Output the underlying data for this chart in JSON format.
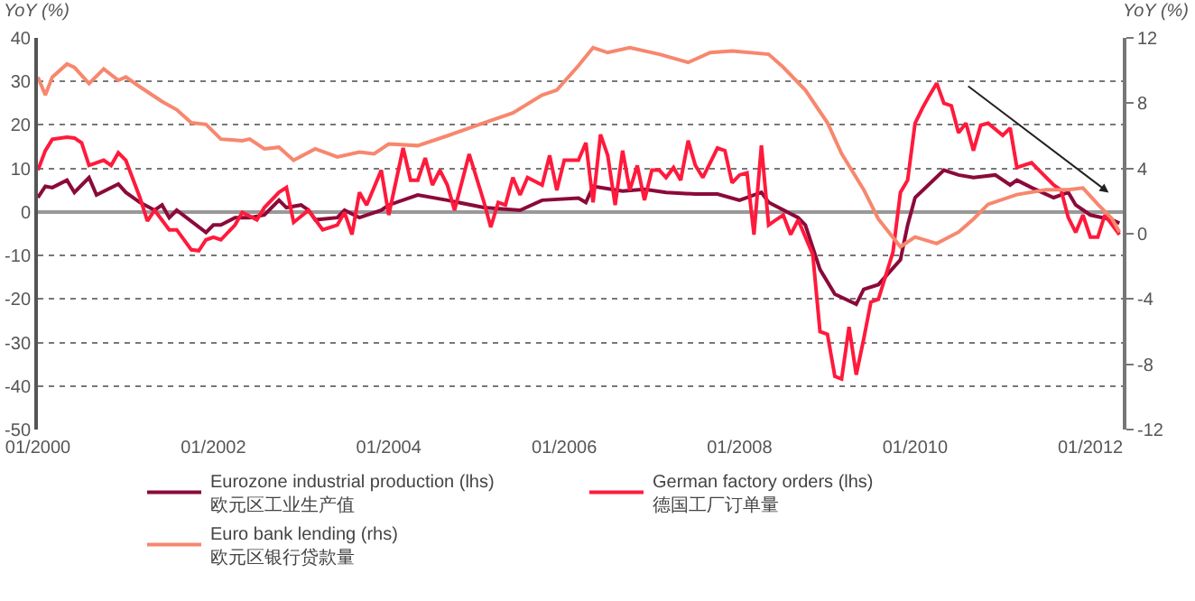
{
  "chart_data": {
    "type": "line",
    "ylabel": "YoY (%)",
    "y2label": "YoY (%)",
    "xlim": [
      "2000-01",
      "2012-05-15"
    ],
    "xticks": [
      {
        "value": "2000-01",
        "label": "01/2000"
      },
      {
        "value": "2002-01",
        "label": "01/2002"
      },
      {
        "value": "2004-01",
        "label": "01/2004"
      },
      {
        "value": "2006-01",
        "label": "01/2006"
      },
      {
        "value": "2008-01",
        "label": "01/2008"
      },
      {
        "value": "2010-01",
        "label": "01/2010"
      },
      {
        "value": "2012-01",
        "label": "01/2012"
      }
    ],
    "ylim": [
      -50,
      40
    ],
    "yticks": [
      -50,
      -40,
      -30,
      -20,
      -10,
      0,
      10,
      20,
      30,
      40
    ],
    "y2lim": [
      -12,
      12
    ],
    "y2ticks": [
      -12,
      -8,
      -4,
      0,
      4,
      8,
      12
    ],
    "grid": "y",
    "legend": "bottom",
    "line_style": "solid",
    "marker": "none",
    "series": [
      {
        "name": "Eurozone industrial production (lhs)\n欧元区工业生产值",
        "color": "#8b0a3a",
        "x": [
          "2000-01",
          "2000-02",
          "2000-03",
          "2000-05",
          "2000-06",
          "2000-08",
          "2000-09",
          "2000-12",
          "2001-01",
          "2001-03",
          "2001-05",
          "2001-06",
          "2001-07",
          "2001-08",
          "2001-12",
          "2002-01",
          "2002-02",
          "2002-04",
          "2002-06",
          "2002-08",
          "2002-10",
          "2002-11",
          "2003-01",
          "2003-02",
          "2003-03",
          "2003-06",
          "2003-07",
          "2003-09",
          "2003-12",
          "2004-01",
          "2004-05",
          "2004-09",
          "2005-02",
          "2005-07",
          "2005-10",
          "2006-03",
          "2006-04",
          "2006-05",
          "2006-09",
          "2006-12",
          "2007-03",
          "2007-07",
          "2007-10",
          "2008-01",
          "2008-04",
          "2008-05",
          "2008-09",
          "2008-10",
          "2008-12",
          "2009-02",
          "2009-05",
          "2009-06",
          "2009-08",
          "2009-11",
          "2009-12",
          "2010-01",
          "2010-05",
          "2010-07",
          "2010-09",
          "2010-12",
          "2011-02",
          "2011-03",
          "2011-05",
          "2011-08",
          "2011-10",
          "2011-11",
          "2012-01",
          "2012-04",
          "2012-05"
        ],
        "values": [
          3.3,
          5.9,
          5.6,
          7.3,
          4.5,
          7.9,
          3.9,
          6.4,
          4.5,
          2.2,
          0.4,
          1.6,
          -1.3,
          0.4,
          -4.7,
          -3.0,
          -3.0,
          -1.3,
          -1.3,
          -0.7,
          2.7,
          1.0,
          1.6,
          0.4,
          -1.8,
          -1.3,
          0.4,
          -1.3,
          0.4,
          1.6,
          3.9,
          2.7,
          1.0,
          0.4,
          2.7,
          3.2,
          2.2,
          5.9,
          4.8,
          5.2,
          4.5,
          4.1,
          4.1,
          2.7,
          4.5,
          2.2,
          -1.3,
          -3.0,
          -13.2,
          -18.9,
          -21.2,
          -17.8,
          -16.7,
          -11.0,
          -3.0,
          3.3,
          9.6,
          8.5,
          7.9,
          8.5,
          6.2,
          7.3,
          5.6,
          3.3,
          4.5,
          1.6,
          -0.7,
          -1.8,
          -2.6
        ]
      },
      {
        "name": "German factory orders (lhs)\n德国工厂订单量",
        "color": "#ff1a3c",
        "x": [
          "2000-01",
          "2000-02",
          "2000-03",
          "2000-05",
          "2000-06",
          "2000-07",
          "2000-08",
          "2000-10",
          "2000-11",
          "2000-12",
          "2001-01",
          "2001-03",
          "2001-04",
          "2001-05",
          "2001-07",
          "2001-08",
          "2001-10",
          "2001-11",
          "2001-12",
          "2002-01",
          "2002-02",
          "2002-04",
          "2002-05",
          "2002-07",
          "2002-08",
          "2002-10",
          "2002-11",
          "2002-12",
          "2003-02",
          "2003-04",
          "2003-06",
          "2003-07",
          "2003-08",
          "2003-09",
          "2003-10",
          "2003-12",
          "2004-01",
          "2004-03",
          "2004-04",
          "2004-05",
          "2004-06",
          "2004-07",
          "2004-08",
          "2004-09",
          "2004-10",
          "2004-12",
          "2005-02",
          "2005-03",
          "2005-04",
          "2005-05",
          "2005-06",
          "2005-07",
          "2005-08",
          "2005-10",
          "2005-11",
          "2005-12",
          "2006-01",
          "2006-03",
          "2006-04",
          "2006-05",
          "2006-06",
          "2006-07",
          "2006-08",
          "2006-09",
          "2006-10",
          "2006-11",
          "2006-12",
          "2007-01",
          "2007-02",
          "2007-03",
          "2007-04",
          "2007-05",
          "2007-06",
          "2007-07",
          "2007-08",
          "2007-10",
          "2007-11",
          "2007-12",
          "2008-01",
          "2008-02",
          "2008-03",
          "2008-04",
          "2008-05",
          "2008-06",
          "2008-07",
          "2008-08",
          "2008-09",
          "2008-11",
          "2008-12",
          "2009-01",
          "2009-02",
          "2009-03",
          "2009-04",
          "2009-05",
          "2009-06",
          "2009-07",
          "2009-08",
          "2009-10",
          "2009-11",
          "2009-12",
          "2010-01",
          "2010-02",
          "2010-03",
          "2010-04",
          "2010-05",
          "2010-06",
          "2010-07",
          "2010-08",
          "2010-09",
          "2010-10",
          "2010-11",
          "2011-01",
          "2011-02",
          "2011-03",
          "2011-05",
          "2011-06",
          "2011-08",
          "2011-09",
          "2011-10",
          "2011-11",
          "2011-12",
          "2012-01",
          "2012-02",
          "2012-03",
          "2012-04",
          "2012-05"
        ],
        "values": [
          9.6,
          14.1,
          16.7,
          17.2,
          17.0,
          15.9,
          10.7,
          11.9,
          10.7,
          13.6,
          11.9,
          3.3,
          -2.1,
          0.4,
          -4.1,
          -4.1,
          -8.7,
          -8.9,
          -6.4,
          -5.8,
          -6.4,
          -3.0,
          -0.1,
          -1.8,
          1.0,
          4.5,
          5.6,
          -2.4,
          0.4,
          -4.1,
          -3.0,
          -0.1,
          -5.2,
          4.5,
          1.6,
          9.6,
          -0.7,
          14.7,
          7.3,
          7.3,
          12.4,
          6.2,
          9.6,
          6.2,
          0.4,
          13.3,
          2.2,
          -3.5,
          2.2,
          1.6,
          7.9,
          3.9,
          7.9,
          6.2,
          13.0,
          5.0,
          11.9,
          11.9,
          15.9,
          2.2,
          17.8,
          13.0,
          1.6,
          14.1,
          5.0,
          10.7,
          2.7,
          9.6,
          9.6,
          7.9,
          10.2,
          7.3,
          16.4,
          10.7,
          7.9,
          14.7,
          14.1,
          6.7,
          8.5,
          9.0,
          -5.2,
          15.3,
          -3.0,
          -1.8,
          -0.7,
          -5.2,
          -1.8,
          -9.8,
          -27.5,
          -28.1,
          -37.8,
          -38.4,
          -26.4,
          -37.4,
          -29.2,
          -20.7,
          -20.1,
          -9.2,
          4.5,
          7.3,
          20.4,
          23.9,
          26.7,
          29.6,
          25.0,
          24.4,
          18.2,
          20.4,
          14.1,
          19.9,
          20.4,
          17.6,
          19.3,
          10.2,
          11.3,
          9.6,
          6.2,
          5.0,
          -1.3,
          -4.7,
          -0.7,
          -5.8,
          -5.8,
          -0.7,
          -3.0,
          -5.2
        ]
      },
      {
        "name": "Euro bank lending (rhs)\n欧元区银行贷款量",
        "color": "#f7876e",
        "axis": "y2",
        "x": [
          "2000-01",
          "2000-02",
          "2000-03",
          "2000-05",
          "2000-06",
          "2000-08",
          "2000-10",
          "2000-12",
          "2001-01",
          "2001-03",
          "2001-06",
          "2001-08",
          "2001-10",
          "2001-12",
          "2002-02",
          "2002-05",
          "2002-06",
          "2002-08",
          "2002-10",
          "2002-12",
          "2003-03",
          "2003-06",
          "2003-09",
          "2003-11",
          "2004-01",
          "2004-05",
          "2004-09",
          "2005-02",
          "2005-06",
          "2005-10",
          "2005-12",
          "2006-03",
          "2006-05",
          "2006-07",
          "2006-10",
          "2007-02",
          "2007-06",
          "2007-09",
          "2007-12",
          "2008-05",
          "2008-07",
          "2008-10",
          "2009-01",
          "2009-03",
          "2009-06",
          "2009-08",
          "2009-11",
          "2010-01",
          "2010-04",
          "2010-07",
          "2010-09",
          "2010-11",
          "2011-03",
          "2011-07",
          "2011-10",
          "2011-12",
          "2012-02",
          "2012-04",
          "2012-05"
        ],
        "values": [
          9.6,
          8.5,
          9.6,
          10.4,
          10.2,
          9.2,
          10.1,
          9.4,
          9.6,
          9.0,
          8.1,
          7.6,
          6.8,
          6.7,
          5.8,
          5.7,
          5.8,
          5.2,
          5.3,
          4.5,
          5.2,
          4.7,
          5.0,
          4.9,
          5.5,
          5.4,
          6.0,
          6.8,
          7.4,
          8.5,
          8.8,
          10.3,
          11.4,
          11.1,
          11.4,
          11.0,
          10.5,
          11.1,
          11.2,
          11.0,
          10.2,
          8.8,
          6.8,
          4.9,
          2.7,
          0.9,
          -0.8,
          -0.2,
          -0.6,
          0.1,
          0.9,
          1.8,
          2.4,
          2.7,
          2.7,
          2.8,
          1.8,
          0.9,
          0.1
        ]
      }
    ]
  }
}
